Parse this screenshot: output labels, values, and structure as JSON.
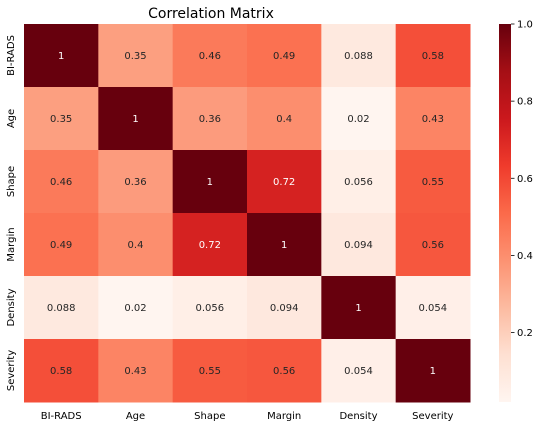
{
  "chart_data": {
    "type": "heatmap",
    "title": "Correlation Matrix",
    "row_labels": [
      "BI-RADS",
      "Age",
      "Shape",
      "Margin",
      "Density",
      "Severity"
    ],
    "col_labels": [
      "BI-RADS",
      "Age",
      "Shape",
      "Margin",
      "Density",
      "Severity"
    ],
    "values": [
      [
        1,
        0.35,
        0.46,
        0.49,
        0.088,
        0.58
      ],
      [
        0.35,
        1,
        0.36,
        0.4,
        0.02,
        0.43
      ],
      [
        0.46,
        0.36,
        1,
        0.72,
        0.056,
        0.55
      ],
      [
        0.49,
        0.4,
        0.72,
        1,
        0.094,
        0.56
      ],
      [
        0.088,
        0.02,
        0.056,
        0.094,
        1,
        0.054
      ],
      [
        0.58,
        0.43,
        0.55,
        0.56,
        0.054,
        1
      ]
    ],
    "value_labels": [
      [
        "1",
        "0.35",
        "0.46",
        "0.49",
        "0.088",
        "0.58"
      ],
      [
        "0.35",
        "1",
        "0.36",
        "0.4",
        "0.02",
        "0.43"
      ],
      [
        "0.46",
        "0.36",
        "1",
        "0.72",
        "0.056",
        "0.55"
      ],
      [
        "0.49",
        "0.4",
        "0.72",
        "1",
        "0.094",
        "0.56"
      ],
      [
        "0.088",
        "0.02",
        "0.056",
        "0.094",
        "1",
        "0.054"
      ],
      [
        "0.58",
        "0.43",
        "0.55",
        "0.56",
        "0.054",
        "1"
      ]
    ],
    "colormap": "Reds",
    "color_range": [
      0.02,
      1
    ],
    "colorbar_ticks": [
      0.2,
      0.4,
      0.6,
      0.8,
      1.0
    ],
    "colorbar_tick_labels": [
      "0.2",
      "0.4",
      "0.6",
      "0.8",
      "1.0"
    ],
    "colorbar_placement": "right"
  }
}
